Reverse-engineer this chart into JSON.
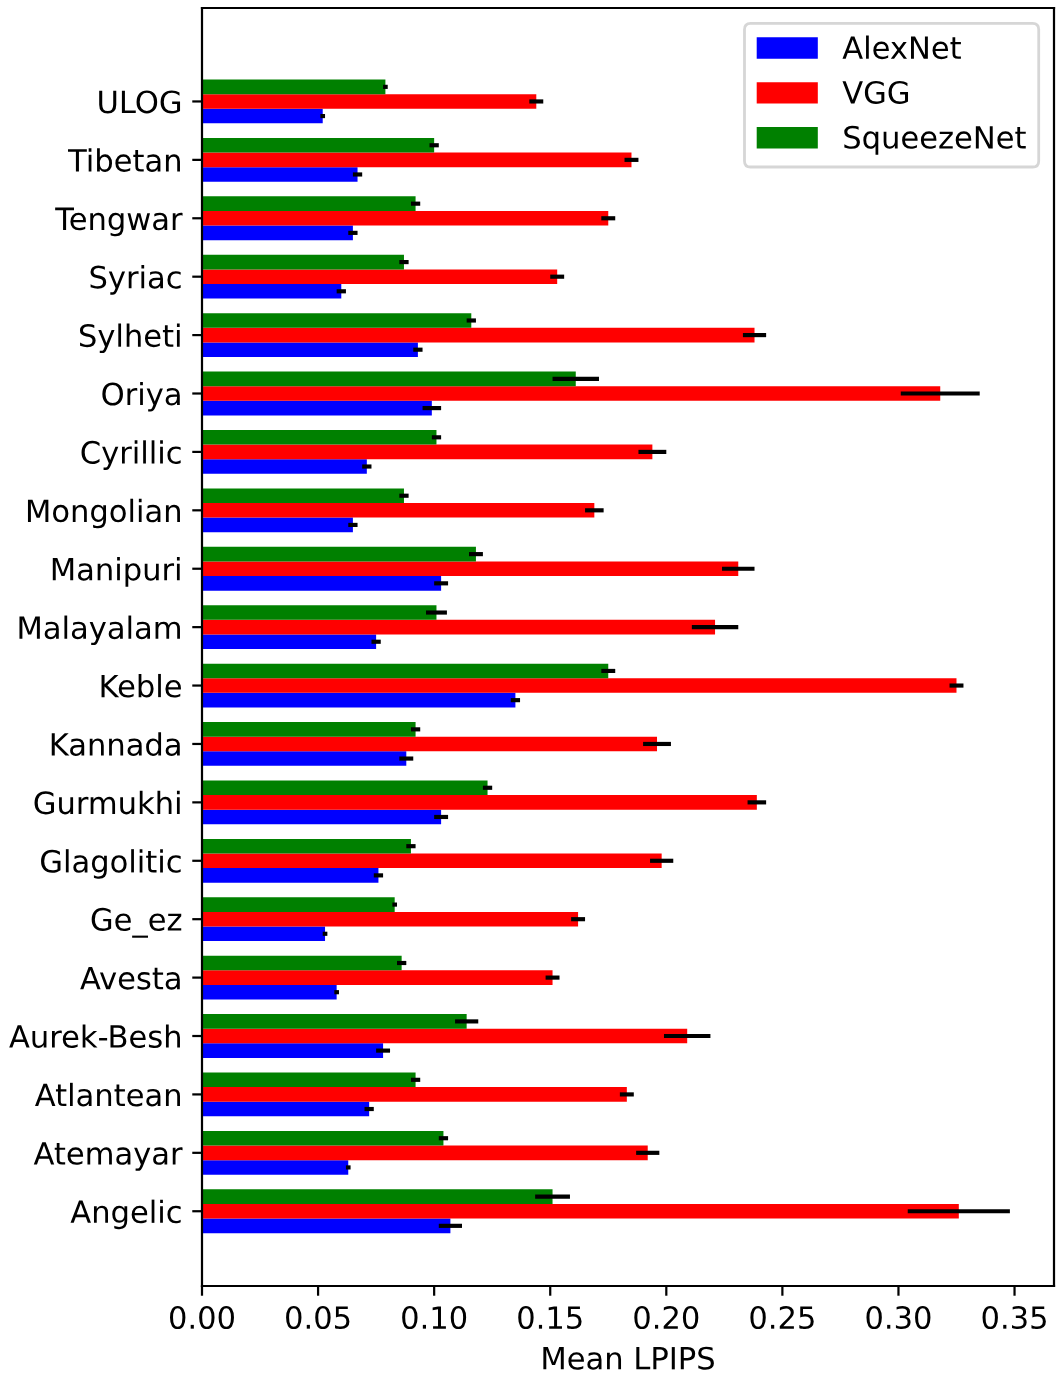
{
  "chart_data": {
    "type": "bar",
    "orientation": "horizontal",
    "xlabel": "Mean LPIPS",
    "categories": [
      "ULOG",
      "Tibetan",
      "Tengwar",
      "Syriac",
      "Sylheti",
      "Oriya",
      "Cyrillic",
      "Mongolian",
      "Manipuri",
      "Malayalam",
      "Keble",
      "Kannada",
      "Gurmukhi",
      "Glagolitic",
      "Ge_ez",
      "Avesta",
      "Aurek-Besh",
      "Atlantean",
      "Atemayar",
      "Angelic"
    ],
    "series": [
      {
        "name": "AlexNet",
        "color": "#0000ff",
        "values": [
          0.052,
          0.067,
          0.065,
          0.06,
          0.093,
          0.099,
          0.071,
          0.065,
          0.103,
          0.075,
          0.135,
          0.088,
          0.103,
          0.076,
          0.053,
          0.058,
          0.078,
          0.072,
          0.063,
          0.107
        ],
        "errors": [
          0.001,
          0.002,
          0.002,
          0.002,
          0.002,
          0.004,
          0.002,
          0.002,
          0.003,
          0.002,
          0.002,
          0.003,
          0.003,
          0.002,
          0.001,
          0.001,
          0.003,
          0.002,
          0.001,
          0.005
        ]
      },
      {
        "name": "VGG",
        "color": "#ff0000",
        "values": [
          0.144,
          0.185,
          0.175,
          0.153,
          0.238,
          0.318,
          0.194,
          0.169,
          0.231,
          0.221,
          0.325,
          0.196,
          0.239,
          0.198,
          0.162,
          0.151,
          0.209,
          0.183,
          0.192,
          0.326
        ],
        "errors": [
          0.003,
          0.003,
          0.003,
          0.003,
          0.005,
          0.017,
          0.006,
          0.004,
          0.007,
          0.01,
          0.003,
          0.006,
          0.004,
          0.005,
          0.003,
          0.003,
          0.01,
          0.003,
          0.005,
          0.022
        ]
      },
      {
        "name": "SqueezeNet",
        "color": "#008000",
        "values": [
          0.079,
          0.1,
          0.092,
          0.087,
          0.116,
          0.161,
          0.101,
          0.087,
          0.118,
          0.101,
          0.175,
          0.092,
          0.123,
          0.09,
          0.083,
          0.086,
          0.114,
          0.092,
          0.104,
          0.151
        ],
        "errors": [
          0.001,
          0.002,
          0.002,
          0.002,
          0.002,
          0.01,
          0.002,
          0.002,
          0.003,
          0.0045,
          0.003,
          0.002,
          0.002,
          0.002,
          0.001,
          0.002,
          0.005,
          0.002,
          0.002,
          0.0075
        ]
      }
    ],
    "xlim": [
      0,
      0.367
    ],
    "xticks": [
      {
        "value": 0,
        "label": "0.00"
      },
      {
        "value": 0.05,
        "label": "0.05"
      },
      {
        "value": 0.1,
        "label": "0.10"
      },
      {
        "value": 0.15,
        "label": "0.15"
      },
      {
        "value": 0.2,
        "label": "0.20"
      },
      {
        "value": 0.25,
        "label": "0.25"
      },
      {
        "value": 0.3,
        "label": "0.30"
      },
      {
        "value": 0.35,
        "label": "0.35"
      }
    ],
    "legend": "top right",
    "grid": false
  }
}
